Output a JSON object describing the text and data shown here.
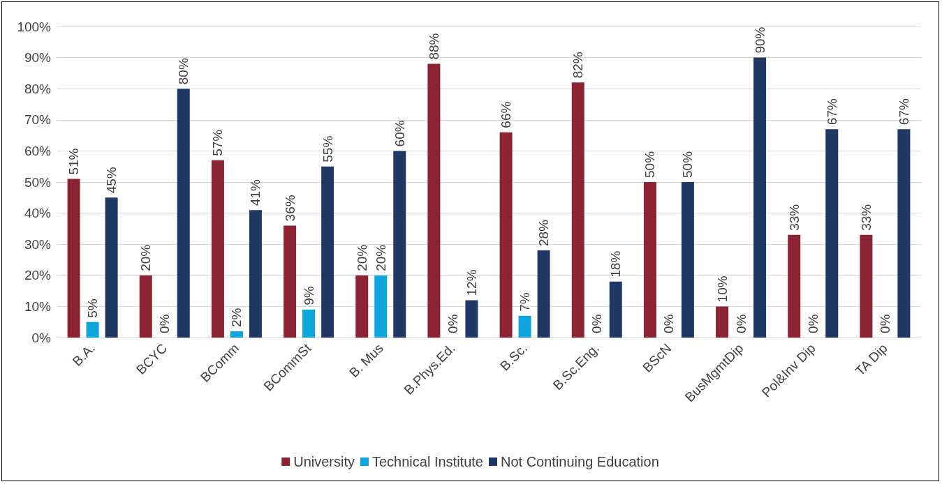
{
  "chart_data": {
    "type": "bar",
    "categories": [
      "B.A.",
      "BCYC",
      "BComm",
      "BCommSt",
      "B. Mus",
      "B.Phys.Ed.",
      "B.Sc.",
      "B.Sc.Eng.",
      "BScN",
      "BusMgmtDip",
      "Pol&Inv Dip",
      "TA Dip"
    ],
    "series": [
      {
        "name": "University",
        "color": "#8b2332",
        "values": [
          51,
          20,
          57,
          36,
          20,
          88,
          66,
          82,
          50,
          10,
          33,
          33
        ],
        "value_labels": [
          "51%",
          "20%",
          "57%",
          "36%",
          "20%",
          "88%",
          "66%",
          "82%",
          "50%",
          "10%",
          "33%",
          "33%"
        ]
      },
      {
        "name": "Technical Institute",
        "color": "#0ea5dc",
        "values": [
          5,
          0,
          2,
          9,
          20,
          0,
          7,
          0,
          0,
          0,
          0,
          0
        ],
        "value_labels": [
          "5%",
          "0%",
          "2%",
          "9%",
          "20%",
          "0%",
          "7%",
          "0%",
          "0%",
          "0%",
          "0%",
          "0%"
        ]
      },
      {
        "name": "Not Continuing Education",
        "color": "#1f3864",
        "values": [
          45,
          80,
          41,
          55,
          60,
          12,
          28,
          18,
          50,
          90,
          67,
          67
        ],
        "value_labels": [
          "45%",
          "80%",
          "41%",
          "55%",
          "60%",
          "12%",
          "28%",
          "18%",
          "50%",
          "90%",
          "67%",
          "67%"
        ]
      }
    ],
    "ylim": [
      0,
      100
    ],
    "yticks": [
      {
        "value": 0,
        "label": "0%"
      },
      {
        "value": 10,
        "label": "10%"
      },
      {
        "value": 20,
        "label": "20%"
      },
      {
        "value": 30,
        "label": "30%"
      },
      {
        "value": 40,
        "label": "40%"
      },
      {
        "value": 50,
        "label": "50%"
      },
      {
        "value": 60,
        "label": "60%"
      },
      {
        "value": 70,
        "label": "70%"
      },
      {
        "value": 80,
        "label": "80%"
      },
      {
        "value": 90,
        "label": "90%"
      },
      {
        "value": 100,
        "label": "100%"
      }
    ],
    "grid": "y",
    "legend": "bottom"
  }
}
